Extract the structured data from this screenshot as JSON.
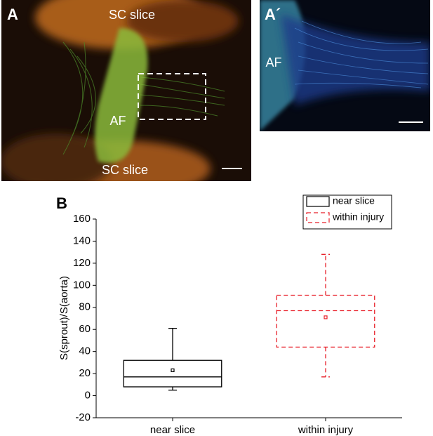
{
  "panels": {
    "a": {
      "label": "A",
      "top": "SC slice",
      "center": "AF",
      "bottom": "SC slice"
    },
    "a_prime": {
      "label": "A´",
      "center": "AF"
    },
    "b": {
      "label": "B"
    }
  },
  "chart_data": {
    "type": "box",
    "y_label": "S(sprout)/S(aorta)",
    "categories": [
      "near slice",
      "within injury"
    ],
    "ylim": [
      -20,
      160
    ],
    "yticks": [
      -20,
      0,
      20,
      40,
      60,
      80,
      100,
      120,
      140,
      160
    ],
    "legend": "top-right",
    "series": [
      {
        "name": "near slice",
        "color": "#000000",
        "dashed": false,
        "whisker_low": 5,
        "q1": 8,
        "median": 17,
        "q3": 32,
        "whisker_high": 61,
        "mean": 23
      },
      {
        "name": "within injury",
        "color": "#e8202a",
        "dashed": true,
        "whisker_low": 17,
        "q1": 44,
        "median": 77,
        "q3": 91,
        "whisker_high": 128,
        "mean": 71
      }
    ]
  }
}
